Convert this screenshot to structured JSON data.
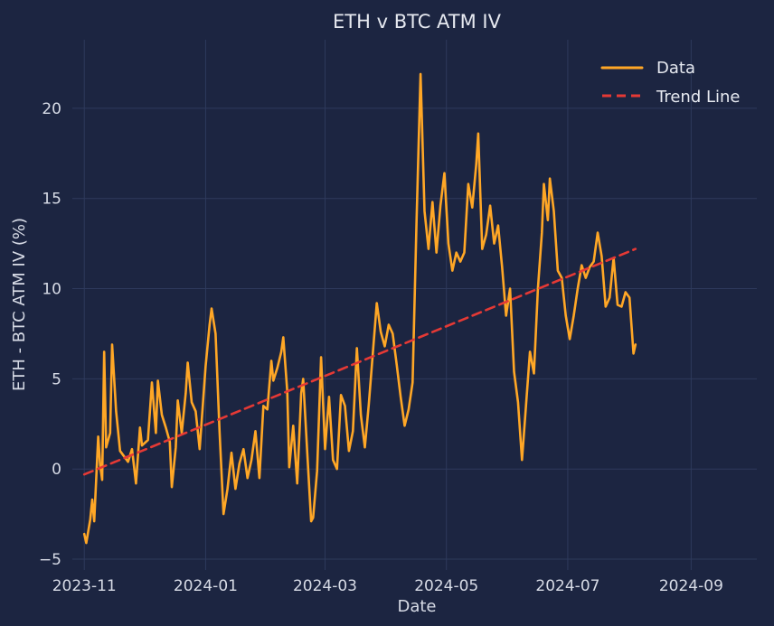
{
  "chart_data": {
    "type": "line",
    "title": "ETH v BTC ATM IV",
    "xlabel": "Date",
    "ylabel": "ETH - BTC ATM IV (%)",
    "xlim": [
      "2023-10-26",
      "2024-10-04"
    ],
    "ylim": [
      -5.6,
      23.8
    ],
    "x_ticks": [
      "2023-11-01",
      "2024-01-01",
      "2024-03-01",
      "2024-05-01",
      "2024-07-01",
      "2024-09-01"
    ],
    "x_tick_labels": [
      "2023-11",
      "2024-01",
      "2024-03",
      "2024-05",
      "2024-07",
      "2024-09"
    ],
    "y_ticks": [
      -5,
      0,
      5,
      10,
      15,
      20
    ],
    "y_tick_labels": [
      "−5",
      "0",
      "5",
      "10",
      "15",
      "20"
    ],
    "grid": true,
    "legend_position": "top-right",
    "colors": {
      "background": "#1c2541",
      "grid": "#2e3a5c",
      "data": "#ffa726",
      "trend": "#e53935"
    },
    "series": [
      {
        "name": "Data",
        "style": "solid",
        "color": "#ffa726",
        "points": [
          [
            "2023-11-01",
            -3.6
          ],
          [
            "2023-11-02",
            -4.1
          ],
          [
            "2023-11-04",
            -2.8
          ],
          [
            "2023-11-05",
            -1.7
          ],
          [
            "2023-11-06",
            -2.9
          ],
          [
            "2023-11-08",
            1.8
          ],
          [
            "2023-11-09",
            0.2
          ],
          [
            "2023-11-10",
            -0.6
          ],
          [
            "2023-11-11",
            6.5
          ],
          [
            "2023-11-12",
            1.2
          ],
          [
            "2023-11-14",
            2.0
          ],
          [
            "2023-11-15",
            6.9
          ],
          [
            "2023-11-17",
            3.2
          ],
          [
            "2023-11-19",
            1.0
          ],
          [
            "2023-11-21",
            0.7
          ],
          [
            "2023-11-23",
            0.4
          ],
          [
            "2023-11-25",
            1.1
          ],
          [
            "2023-11-27",
            -0.8
          ],
          [
            "2023-11-29",
            2.3
          ],
          [
            "2023-11-30",
            1.3
          ],
          [
            "2023-12-03",
            1.6
          ],
          [
            "2023-12-05",
            4.8
          ],
          [
            "2023-12-07",
            2.0
          ],
          [
            "2023-12-08",
            4.9
          ],
          [
            "2023-12-10",
            3.0
          ],
          [
            "2023-12-12",
            2.3
          ],
          [
            "2023-12-14",
            1.5
          ],
          [
            "2023-12-15",
            -1.0
          ],
          [
            "2023-12-17",
            1.2
          ],
          [
            "2023-12-18",
            3.8
          ],
          [
            "2023-12-20",
            2.0
          ],
          [
            "2023-12-22",
            4.2
          ],
          [
            "2023-12-23",
            5.9
          ],
          [
            "2023-12-25",
            3.7
          ],
          [
            "2023-12-27",
            3.2
          ],
          [
            "2023-12-29",
            1.1
          ],
          [
            "2024-01-01",
            5.7
          ],
          [
            "2024-01-03",
            8.0
          ],
          [
            "2024-01-04",
            8.9
          ],
          [
            "2024-01-06",
            7.5
          ],
          [
            "2024-01-08",
            2.1
          ],
          [
            "2024-01-10",
            -2.5
          ],
          [
            "2024-01-12",
            -1.1
          ],
          [
            "2024-01-14",
            0.9
          ],
          [
            "2024-01-16",
            -1.1
          ],
          [
            "2024-01-18",
            0.3
          ],
          [
            "2024-01-20",
            1.1
          ],
          [
            "2024-01-22",
            -0.5
          ],
          [
            "2024-01-24",
            0.5
          ],
          [
            "2024-01-26",
            2.1
          ],
          [
            "2024-01-28",
            -0.5
          ],
          [
            "2024-01-30",
            3.5
          ],
          [
            "2024-02-01",
            3.3
          ],
          [
            "2024-02-03",
            6.0
          ],
          [
            "2024-02-04",
            4.9
          ],
          [
            "2024-02-06",
            5.6
          ],
          [
            "2024-02-08",
            6.5
          ],
          [
            "2024-02-09",
            7.3
          ],
          [
            "2024-02-11",
            4.3
          ],
          [
            "2024-02-12",
            0.1
          ],
          [
            "2024-02-14",
            2.4
          ],
          [
            "2024-02-16",
            -0.8
          ],
          [
            "2024-02-18",
            4.2
          ],
          [
            "2024-02-19",
            5.0
          ],
          [
            "2024-02-21",
            1.0
          ],
          [
            "2024-02-23",
            -2.9
          ],
          [
            "2024-02-24",
            -2.7
          ],
          [
            "2024-02-26",
            -0.1
          ],
          [
            "2024-02-28",
            6.2
          ],
          [
            "2024-03-01",
            1.1
          ],
          [
            "2024-03-03",
            4.0
          ],
          [
            "2024-03-05",
            0.5
          ],
          [
            "2024-03-07",
            0.0
          ],
          [
            "2024-03-09",
            4.1
          ],
          [
            "2024-03-11",
            3.5
          ],
          [
            "2024-03-13",
            1.0
          ],
          [
            "2024-03-15",
            2.1
          ],
          [
            "2024-03-17",
            6.7
          ],
          [
            "2024-03-19",
            3.0
          ],
          [
            "2024-03-21",
            1.2
          ],
          [
            "2024-03-23",
            3.6
          ],
          [
            "2024-03-25",
            6.4
          ],
          [
            "2024-03-27",
            9.2
          ],
          [
            "2024-03-29",
            7.6
          ],
          [
            "2024-03-31",
            6.8
          ],
          [
            "2024-04-02",
            8.0
          ],
          [
            "2024-04-04",
            7.5
          ],
          [
            "2024-04-06",
            5.8
          ],
          [
            "2024-04-08",
            4.0
          ],
          [
            "2024-04-10",
            2.4
          ],
          [
            "2024-04-12",
            3.3
          ],
          [
            "2024-04-14",
            4.8
          ],
          [
            "2024-04-16",
            13.8
          ],
          [
            "2024-04-18",
            21.9
          ],
          [
            "2024-04-20",
            14.3
          ],
          [
            "2024-04-22",
            12.2
          ],
          [
            "2024-04-24",
            14.8
          ],
          [
            "2024-04-26",
            12.0
          ],
          [
            "2024-04-28",
            14.6
          ],
          [
            "2024-04-30",
            16.4
          ],
          [
            "2024-05-02",
            12.5
          ],
          [
            "2024-05-04",
            11.0
          ],
          [
            "2024-05-06",
            12.0
          ],
          [
            "2024-05-08",
            11.5
          ],
          [
            "2024-05-10",
            12.0
          ],
          [
            "2024-05-12",
            15.8
          ],
          [
            "2024-05-14",
            14.5
          ],
          [
            "2024-05-16",
            16.9
          ],
          [
            "2024-05-17",
            18.6
          ],
          [
            "2024-05-19",
            12.2
          ],
          [
            "2024-05-21",
            13.0
          ],
          [
            "2024-05-23",
            14.6
          ],
          [
            "2024-05-25",
            12.5
          ],
          [
            "2024-05-27",
            13.5
          ],
          [
            "2024-05-29",
            11.2
          ],
          [
            "2024-05-31",
            8.5
          ],
          [
            "2024-06-02",
            10.0
          ],
          [
            "2024-06-04",
            5.4
          ],
          [
            "2024-06-06",
            3.7
          ],
          [
            "2024-06-08",
            0.5
          ],
          [
            "2024-06-10",
            3.5
          ],
          [
            "2024-06-12",
            6.5
          ],
          [
            "2024-06-14",
            5.3
          ],
          [
            "2024-06-16",
            10.0
          ],
          [
            "2024-06-18",
            13.1
          ],
          [
            "2024-06-19",
            15.8
          ],
          [
            "2024-06-21",
            13.8
          ],
          [
            "2024-06-22",
            16.1
          ],
          [
            "2024-06-24",
            14.3
          ],
          [
            "2024-06-26",
            11.0
          ],
          [
            "2024-06-28",
            10.6
          ],
          [
            "2024-06-30",
            8.5
          ],
          [
            "2024-07-02",
            7.2
          ],
          [
            "2024-07-04",
            8.5
          ],
          [
            "2024-07-06",
            10.0
          ],
          [
            "2024-07-08",
            11.3
          ],
          [
            "2024-07-10",
            10.6
          ],
          [
            "2024-07-12",
            11.2
          ],
          [
            "2024-07-14",
            11.5
          ],
          [
            "2024-07-16",
            13.1
          ],
          [
            "2024-07-18",
            11.8
          ],
          [
            "2024-07-20",
            9.0
          ],
          [
            "2024-07-22",
            9.5
          ],
          [
            "2024-07-24",
            11.7
          ],
          [
            "2024-07-26",
            9.1
          ],
          [
            "2024-07-28",
            9.0
          ],
          [
            "2024-07-30",
            9.8
          ],
          [
            "2024-08-01",
            9.5
          ],
          [
            "2024-08-03",
            6.4
          ],
          [
            "2024-08-04",
            6.9
          ]
        ]
      },
      {
        "name": "Trend Line",
        "style": "dashed",
        "color": "#e53935",
        "points": [
          [
            "2023-11-01",
            -0.3
          ],
          [
            "2024-08-04",
            12.2
          ]
        ]
      }
    ]
  }
}
